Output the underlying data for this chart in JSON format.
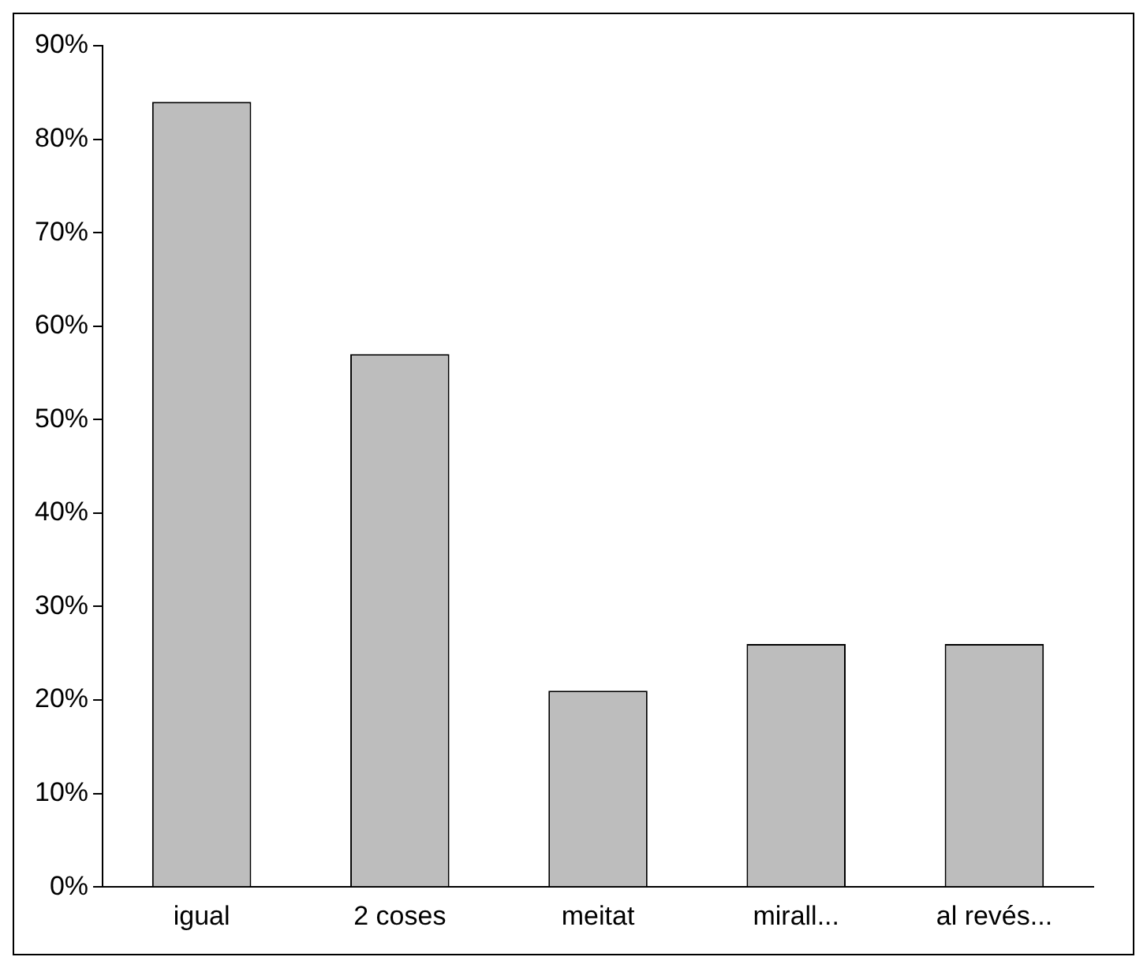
{
  "chart_data": {
    "type": "bar",
    "categories": [
      "igual",
      "2 coses",
      "meitat",
      "mirall...",
      "al revés..."
    ],
    "values": [
      84,
      57,
      21,
      26,
      26
    ],
    "color": "#bdbdbd",
    "ylim": [
      0,
      90
    ],
    "yticks": [
      {
        "value": 0,
        "label": "0%"
      },
      {
        "value": 10,
        "label": "10%"
      },
      {
        "value": 20,
        "label": "20%"
      },
      {
        "value": 30,
        "label": "30%"
      },
      {
        "value": 40,
        "label": "40%"
      },
      {
        "value": 50,
        "label": "50%"
      },
      {
        "value": 60,
        "label": "60%"
      },
      {
        "value": 70,
        "label": "70%"
      },
      {
        "value": 80,
        "label": "80%"
      },
      {
        "value": 90,
        "label": "90%"
      }
    ],
    "grid": false,
    "legend": false
  }
}
